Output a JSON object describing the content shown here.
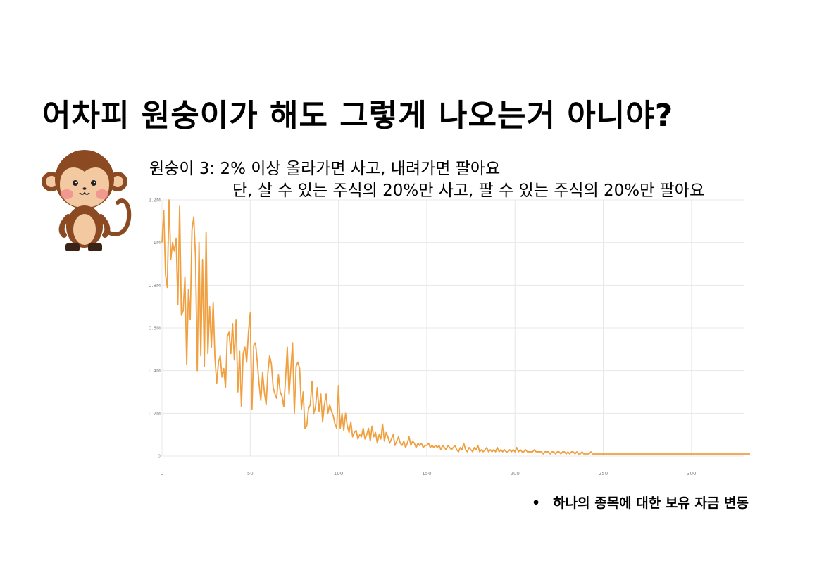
{
  "slide": {
    "title": "어차피 원숭이가 해도 그렇게 나오는거 아니야?",
    "description_line1": "원숭이 3: 2% 이상 올라가면 사고, 내려가면 팔아요",
    "description_line2": "단, 살 수 있는 주식의 20%만 사고, 팔 수 있는 주식의 20%만 팔아요",
    "bullet_symbol": "•",
    "bullet_note": "하나의 종목에 대한 보유 자금 변동"
  },
  "icons": {
    "mascot": "monkey-illustration"
  },
  "colors": {
    "line": "#f0a040",
    "grid": "#e8e8e8",
    "axis_text": "#888888"
  },
  "chart_data": {
    "type": "line",
    "xlim": [
      0,
      330
    ],
    "ylim": [
      0,
      1200000
    ],
    "x_ticks": [
      0,
      50,
      100,
      150,
      200,
      250,
      300
    ],
    "x_tick_labels": [
      "0",
      "50",
      "100",
      "150",
      "200",
      "250",
      "300"
    ],
    "y_ticks": [
      0,
      200000,
      400000,
      600000,
      800000,
      1000000,
      1200000
    ],
    "y_tick_labels": [
      "0",
      "0.2M",
      "0.4M",
      "0.6M",
      "0.8M",
      "1M",
      "1.2M"
    ],
    "grid": true,
    "series": [
      {
        "values": [
          1000000,
          1150000,
          850000,
          790000,
          1200000,
          920000,
          1000000,
          960000,
          1020000,
          710000,
          1170000,
          660000,
          680000,
          840000,
          430000,
          780000,
          640000,
          1060000,
          1120000,
          930000,
          400000,
          1000000,
          470000,
          920000,
          420000,
          1050000,
          480000,
          700000,
          510000,
          720000,
          460000,
          340000,
          440000,
          470000,
          370000,
          410000,
          320000,
          560000,
          580000,
          480000,
          620000,
          450000,
          640000,
          300000,
          490000,
          230000,
          480000,
          510000,
          440000,
          580000,
          670000,
          220000,
          520000,
          530000,
          440000,
          340000,
          260000,
          390000,
          300000,
          240000,
          390000,
          470000,
          430000,
          320000,
          290000,
          270000,
          380000,
          300000,
          280000,
          230000,
          360000,
          510000,
          290000,
          410000,
          530000,
          200000,
          420000,
          440000,
          410000,
          220000,
          300000,
          130000,
          140000,
          220000,
          240000,
          350000,
          200000,
          230000,
          320000,
          210000,
          290000,
          160000,
          240000,
          290000,
          200000,
          240000,
          210000,
          190000,
          150000,
          130000,
          330000,
          130000,
          200000,
          120000,
          200000,
          140000,
          110000,
          160000,
          90000,
          110000,
          120000,
          80000,
          100000,
          90000,
          130000,
          80000,
          100000,
          130000,
          70000,
          140000,
          90000,
          110000,
          60000,
          100000,
          80000,
          150000,
          70000,
          110000,
          90000,
          60000,
          80000,
          100000,
          50000,
          70000,
          90000,
          60000,
          50000,
          70000,
          40000,
          60000,
          90000,
          50000,
          70000,
          60000,
          40000,
          60000,
          50000,
          60000,
          40000,
          50000,
          50000,
          60000,
          40000,
          50000,
          40000,
          50000,
          40000,
          50000,
          30000,
          50000,
          40000,
          30000,
          50000,
          40000,
          30000,
          40000,
          50000,
          30000,
          20000,
          40000,
          30000,
          60000,
          30000,
          20000,
          40000,
          30000,
          20000,
          40000,
          30000,
          50000,
          20000,
          30000,
          20000,
          30000,
          40000,
          20000,
          30000,
          20000,
          30000,
          20000,
          40000,
          20000,
          30000,
          20000,
          30000,
          20000,
          20000,
          30000,
          20000,
          30000,
          20000,
          40000,
          20000,
          30000,
          20000,
          20000,
          30000,
          20000,
          20000,
          20000,
          20000,
          30000,
          20000,
          20000,
          20000,
          20000,
          10000,
          20000,
          20000,
          20000,
          10000,
          20000,
          20000,
          10000,
          20000,
          20000,
          10000,
          20000,
          20000,
          10000,
          20000,
          10000,
          20000,
          20000,
          10000,
          20000,
          10000,
          10000,
          20000,
          10000,
          10000,
          10000,
          10000,
          20000,
          10000,
          10000,
          10000,
          10000,
          10000,
          10000,
          10000,
          10000,
          10000,
          10000,
          10000,
          10000,
          10000,
          10000,
          10000,
          10000,
          10000,
          10000,
          10000,
          10000,
          10000,
          10000,
          10000,
          10000,
          10000,
          10000,
          10000,
          10000,
          10000,
          10000,
          10000,
          10000,
          10000,
          10000,
          10000,
          10000,
          10000,
          10000,
          10000,
          10000,
          10000,
          10000,
          10000,
          10000,
          10000,
          10000,
          10000,
          10000,
          10000,
          10000,
          10000,
          10000,
          10000,
          10000,
          10000,
          10000,
          10000,
          10000,
          10000,
          10000,
          10000,
          10000,
          10000,
          10000,
          10000,
          10000,
          10000,
          10000,
          10000,
          10000,
          10000,
          10000,
          10000,
          10000,
          10000,
          10000,
          10000,
          10000,
          10000,
          10000,
          10000,
          10000,
          10000,
          10000,
          10000,
          10000,
          10000,
          10000,
          10000,
          10000,
          10000,
          10000,
          10000,
          10000,
          10000,
          10000,
          10000,
          10000,
          10000,
          10000,
          10000
        ]
      }
    ]
  }
}
